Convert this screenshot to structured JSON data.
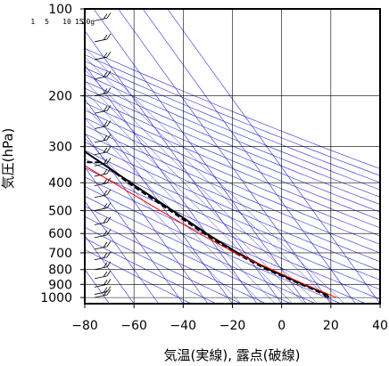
{
  "chart_data": {
    "type": "line",
    "chart_kind": "skew-T log-P sounding",
    "xlabel": "気温(実線), 露点(破線)",
    "ylabel": "気圧(hPa)",
    "xlim": [
      -80,
      40
    ],
    "ylim": [
      1050,
      100
    ],
    "y_scale": "log",
    "x_ticks": [
      "−80",
      "−60",
      "−40",
      "−20",
      "0",
      "20",
      "40"
    ],
    "x_tick_values": [
      -80,
      -60,
      -40,
      -20,
      0,
      20,
      40
    ],
    "y_ticks": [
      "100",
      "200",
      "300",
      "400",
      "500",
      "600",
      "700",
      "800",
      "900",
      "1000"
    ],
    "y_tick_values": [
      100,
      200,
      300,
      400,
      500,
      600,
      700,
      800,
      900,
      1000
    ],
    "mixing_ratio_labels": [
      "1",
      "5",
      "10",
      "15",
      "20g"
    ],
    "series": [
      {
        "style": "solid",
        "color": "#000000",
        "points": [
          [
            1000,
            21
          ],
          [
            975,
            21
          ],
          [
            950,
            19
          ],
          [
            925,
            17
          ],
          [
            900,
            14.5
          ],
          [
            850,
            10
          ],
          [
            800,
            5
          ],
          [
            700,
            -3
          ],
          [
            600,
            -10
          ],
          [
            500,
            -17
          ],
          [
            400,
            -26
          ],
          [
            350,
            -31
          ],
          [
            300,
            -37
          ],
          [
            250,
            -46
          ],
          [
            200,
            -56
          ],
          [
            150,
            -66
          ],
          [
            125,
            -70
          ],
          [
            100,
            -72
          ]
        ]
      },
      {
        "style": "dashed",
        "color": "#000000",
        "points": [
          [
            1000,
            20
          ],
          [
            975,
            20
          ],
          [
            950,
            18
          ],
          [
            925,
            16
          ],
          [
            900,
            13.5
          ],
          [
            850,
            9
          ],
          [
            800,
            4
          ],
          [
            700,
            -4
          ],
          [
            600,
            -11
          ],
          [
            500,
            -18
          ],
          [
            400,
            -27
          ],
          [
            350,
            -31
          ],
          [
            340,
            -32
          ],
          [
            340,
            -79
          ],
          [
            280,
            -79
          ],
          [
            280,
            -45
          ],
          [
            250,
            -50
          ],
          [
            200,
            -60
          ],
          [
            150,
            -70
          ],
          [
            100,
            -75
          ]
        ]
      },
      {
        "style": "solid",
        "color": "#ff0000",
        "points": [
          [
            1000,
            24
          ],
          [
            900,
            15
          ],
          [
            800,
            6
          ],
          [
            700,
            -4
          ],
          [
            600,
            -13
          ],
          [
            500,
            -22
          ],
          [
            400,
            -33
          ],
          [
            300,
            -47
          ],
          [
            250,
            -56
          ],
          [
            200,
            -66
          ],
          [
            150,
            -79
          ]
        ]
      }
    ],
    "colors": {
      "reference_lines": "#2b2bd8",
      "grid": "#000000",
      "temperature": "#000000",
      "parcel": "#ff0000"
    }
  }
}
